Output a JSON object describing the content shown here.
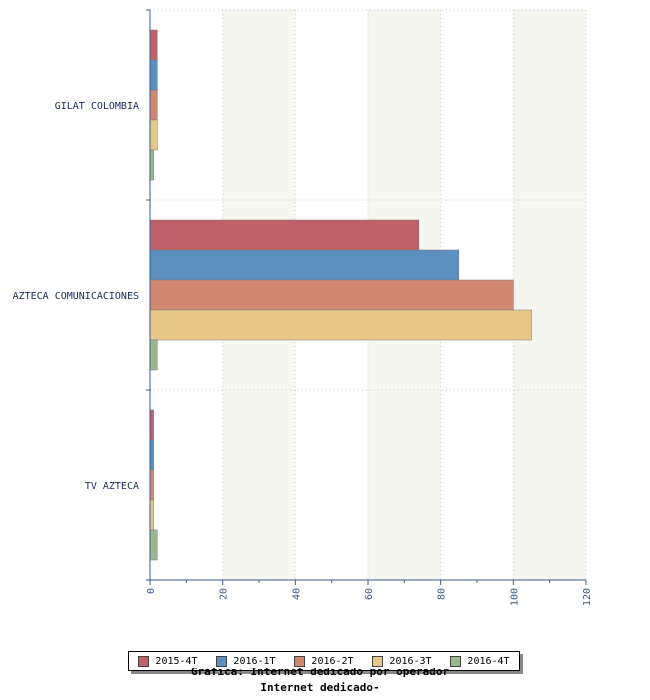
{
  "chart_data": {
    "type": "bar",
    "orientation": "horizontal",
    "categories": [
      "GILAT COLOMBIA",
      "AZTECA COMUNICACIONES",
      "TV AZTECA"
    ],
    "series": [
      {
        "name": "2015-4T",
        "color": "#c0606a",
        "values": [
          2,
          74,
          1
        ]
      },
      {
        "name": "2016-1T",
        "color": "#5b8fc0",
        "values": [
          2,
          85,
          1
        ]
      },
      {
        "name": "2016-2T",
        "color": "#d08870",
        "values": [
          2,
          100,
          1
        ]
      },
      {
        "name": "2016-3T",
        "color": "#e8c888",
        "values": [
          2,
          105,
          1
        ]
      },
      {
        "name": "2016-4T",
        "color": "#9ab890",
        "values": [
          1,
          2,
          2
        ]
      }
    ],
    "xlim": [
      0,
      120
    ],
    "xticks": [
      0,
      20,
      40,
      60,
      80,
      100,
      120
    ],
    "grid": true,
    "legend_position": "bottom"
  },
  "caption": {
    "line1": "Gráfica: Internet dedicado por operador",
    "line2": "Internet dedicado-"
  }
}
